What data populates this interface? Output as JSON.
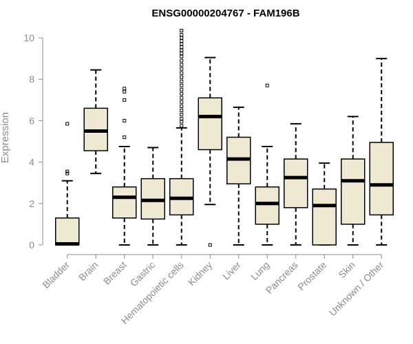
{
  "chart_data": {
    "type": "box",
    "title": "ENSG00000204767 - FAM196B",
    "ylabel": "Expression",
    "xlabel": "",
    "ylim": [
      0,
      10
    ],
    "yticks": [
      0,
      2,
      4,
      6,
      8,
      10
    ],
    "box_fill": "#efe9d3",
    "categories": [
      "Bladder",
      "Brain",
      "Breast",
      "Gastric",
      "Hematopoietic cells",
      "Kidney",
      "Liver",
      "Lung",
      "Pancreas",
      "Prostate",
      "Skin",
      "Unknown / Other"
    ],
    "boxes": [
      {
        "category": "Bladder",
        "min": 0,
        "q1": 0,
        "median": 0.05,
        "q3": 1.3,
        "max": 3.1,
        "outliers": [
          3.45,
          3.55,
          5.85
        ]
      },
      {
        "category": "Brain",
        "min": 3.45,
        "q1": 4.55,
        "median": 5.5,
        "q3": 6.6,
        "max": 8.45,
        "outliers": []
      },
      {
        "category": "Breast",
        "min": 0,
        "q1": 1.3,
        "median": 2.3,
        "q3": 2.8,
        "max": 4.75,
        "outliers": [
          5.2,
          6.0,
          7.0,
          7.4,
          7.55
        ]
      },
      {
        "category": "Gastric",
        "min": 0,
        "q1": 1.25,
        "median": 2.15,
        "q3": 3.2,
        "max": 4.7,
        "outliers": []
      },
      {
        "category": "Hematopoietic cells",
        "min": 0,
        "q1": 1.45,
        "median": 2.25,
        "q3": 3.2,
        "max": 5.65,
        "outliers": [
          5.75,
          5.95,
          6.1,
          6.3,
          6.5,
          6.7,
          6.9,
          7.1,
          7.3,
          7.5,
          7.7,
          7.9,
          8.1,
          8.3,
          8.5,
          8.7,
          8.9,
          9.1,
          9.25,
          9.4,
          9.55,
          9.7,
          9.85,
          10.0,
          10.15,
          10.35
        ]
      },
      {
        "category": "Kidney",
        "min": 1.95,
        "q1": 4.6,
        "median": 6.2,
        "q3": 7.1,
        "max": 9.05,
        "outliers": [
          0.0
        ]
      },
      {
        "category": "Liver",
        "min": 0,
        "q1": 2.95,
        "median": 4.15,
        "q3": 5.2,
        "max": 6.65,
        "outliers": []
      },
      {
        "category": "Lung",
        "min": 0,
        "q1": 1.0,
        "median": 2.0,
        "q3": 2.8,
        "max": 4.75,
        "outliers": [
          7.7
        ]
      },
      {
        "category": "Pancreas",
        "min": 0,
        "q1": 1.8,
        "median": 3.25,
        "q3": 4.15,
        "max": 5.85,
        "outliers": []
      },
      {
        "category": "Prostate",
        "min": 0,
        "q1": 0,
        "median": 1.9,
        "q3": 2.7,
        "max": 3.95,
        "outliers": []
      },
      {
        "category": "Skin",
        "min": 0,
        "q1": 1.0,
        "median": 3.1,
        "q3": 4.15,
        "max": 6.2,
        "outliers": []
      },
      {
        "category": "Unknown / Other",
        "min": 0,
        "q1": 1.45,
        "median": 2.9,
        "q3": 4.95,
        "max": 9.0,
        "outliers": []
      }
    ]
  }
}
